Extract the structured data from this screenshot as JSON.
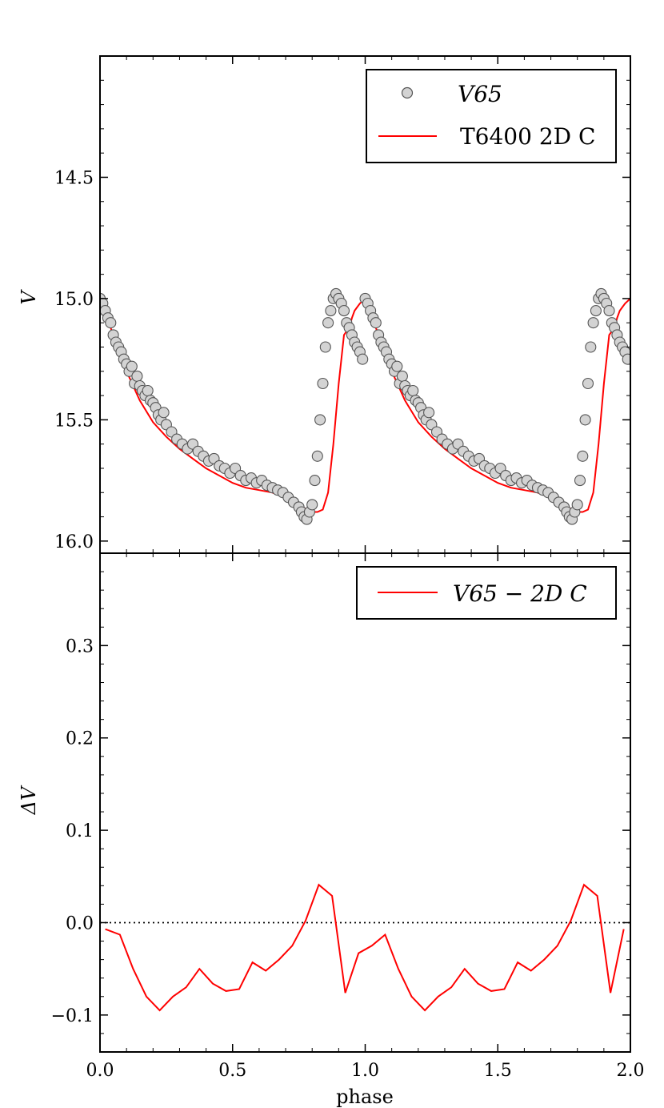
{
  "chart_data": [
    {
      "type": "scatter",
      "panel": "top",
      "xlabel": "",
      "ylabel": "V",
      "xlim": [
        0.0,
        2.0
      ],
      "ylim": [
        16.05,
        14.0
      ],
      "y_inverted": true,
      "yticks": [
        "14.5",
        "15.0",
        "15.5",
        "16.0"
      ],
      "ytick_values": [
        14.5,
        15.0,
        15.5,
        16.0
      ],
      "legend_position": "top-right",
      "legend": [
        {
          "label": "V65",
          "kind": "marker",
          "color": "#d3d3d3"
        },
        {
          "label": "T6400 2D C",
          "kind": "line",
          "color": "#ff0000"
        }
      ],
      "series": [
        {
          "name": "V65",
          "kind": "points",
          "note_symmetry": "phase 1.0-2.0 repeats phase 0.0-1.0",
          "x": [
            0.0,
            0.01,
            0.02,
            0.03,
            0.04,
            0.05,
            0.06,
            0.07,
            0.08,
            0.09,
            0.1,
            0.11,
            0.12,
            0.13,
            0.14,
            0.15,
            0.16,
            0.17,
            0.18,
            0.19,
            0.2,
            0.21,
            0.22,
            0.23,
            0.24,
            0.25,
            0.27,
            0.29,
            0.31,
            0.33,
            0.35,
            0.37,
            0.39,
            0.41,
            0.43,
            0.45,
            0.47,
            0.49,
            0.51,
            0.53,
            0.55,
            0.57,
            0.59,
            0.61,
            0.63,
            0.65,
            0.67,
            0.69,
            0.71,
            0.73,
            0.75,
            0.76,
            0.77,
            0.78,
            0.79,
            0.8,
            0.81,
            0.82,
            0.83,
            0.84,
            0.85,
            0.86,
            0.87,
            0.88,
            0.89,
            0.9,
            0.91,
            0.92,
            0.93,
            0.94,
            0.95,
            0.96,
            0.97,
            0.98,
            0.99
          ],
          "y": [
            15.0,
            15.02,
            15.05,
            15.08,
            15.1,
            15.15,
            15.18,
            15.2,
            15.22,
            15.25,
            15.27,
            15.3,
            15.28,
            15.35,
            15.32,
            15.36,
            15.38,
            15.4,
            15.38,
            15.42,
            15.43,
            15.45,
            15.48,
            15.5,
            15.47,
            15.52,
            15.55,
            15.58,
            15.6,
            15.62,
            15.6,
            15.63,
            15.65,
            15.67,
            15.66,
            15.69,
            15.7,
            15.72,
            15.7,
            15.73,
            15.75,
            15.74,
            15.76,
            15.75,
            15.77,
            15.78,
            15.79,
            15.8,
            15.82,
            15.84,
            15.86,
            15.88,
            15.9,
            15.91,
            15.88,
            15.85,
            15.75,
            15.65,
            15.5,
            15.35,
            15.2,
            15.1,
            15.05,
            15.0,
            14.98,
            15.0,
            15.02,
            15.05,
            15.1,
            15.12,
            15.15,
            15.18,
            15.2,
            15.22,
            15.25
          ]
        },
        {
          "name": "T6400 2D C",
          "kind": "line",
          "x": [
            0.0,
            0.05,
            0.1,
            0.15,
            0.2,
            0.25,
            0.3,
            0.35,
            0.4,
            0.45,
            0.5,
            0.55,
            0.6,
            0.65,
            0.7,
            0.72,
            0.75,
            0.78,
            0.8,
            0.82,
            0.84,
            0.86,
            0.88,
            0.9,
            0.92,
            0.94,
            0.95,
            0.96,
            0.98,
            1.0,
            1.05,
            1.1,
            1.15,
            1.2,
            1.25,
            1.3,
            1.35,
            1.4,
            1.45,
            1.5,
            1.55,
            1.6,
            1.65,
            1.7,
            1.72,
            1.75,
            1.78,
            1.8,
            1.82,
            1.84,
            1.86,
            1.88,
            1.9,
            1.92,
            1.94,
            1.95,
            1.96,
            1.98,
            2.0
          ],
          "y": [
            15.0,
            15.15,
            15.3,
            15.42,
            15.51,
            15.57,
            15.62,
            15.66,
            15.7,
            15.73,
            15.76,
            15.78,
            15.79,
            15.8,
            15.82,
            15.83,
            15.85,
            15.87,
            15.88,
            15.88,
            15.87,
            15.8,
            15.6,
            15.35,
            15.15,
            15.12,
            15.08,
            15.05,
            15.02,
            15.0,
            15.15,
            15.3,
            15.42,
            15.51,
            15.57,
            15.62,
            15.66,
            15.7,
            15.73,
            15.76,
            15.78,
            15.79,
            15.8,
            15.82,
            15.83,
            15.85,
            15.87,
            15.88,
            15.88,
            15.87,
            15.8,
            15.6,
            15.35,
            15.15,
            15.12,
            15.08,
            15.05,
            15.02,
            15.0
          ]
        }
      ]
    },
    {
      "type": "line",
      "panel": "bottom",
      "xlabel": "phase",
      "ylabel": "ΔV",
      "xlim": [
        0.0,
        2.0
      ],
      "ylim": [
        -0.14,
        0.4
      ],
      "xticks": [
        "0.0",
        "0.5",
        "1.0",
        "1.5",
        "2.0"
      ],
      "xtick_values": [
        0.0,
        0.5,
        1.0,
        1.5,
        2.0
      ],
      "yticks": [
        "−0.1",
        "0.0",
        "0.1",
        "0.2",
        "0.3"
      ],
      "ytick_values": [
        -0.1,
        0.0,
        0.1,
        0.2,
        0.3
      ],
      "reference_line": {
        "y": 0.0,
        "style": "dotted",
        "color": "#000000"
      },
      "legend_position": "top-right",
      "legend": [
        {
          "label": "V65 − 2D C",
          "kind": "line",
          "color": "#ff0000"
        }
      ],
      "series": [
        {
          "name": "V65 − 2D C",
          "color": "#ff0000",
          "x": [
            0.02,
            0.075,
            0.125,
            0.175,
            0.225,
            0.275,
            0.325,
            0.375,
            0.425,
            0.475,
            0.525,
            0.575,
            0.625,
            0.675,
            0.725,
            0.775,
            0.825,
            0.875,
            0.925,
            0.975,
            1.025,
            1.075,
            1.125,
            1.175,
            1.225,
            1.275,
            1.325,
            1.375,
            1.425,
            1.475,
            1.525,
            1.575,
            1.625,
            1.675,
            1.725,
            1.775,
            1.825,
            1.875,
            1.925,
            1.975
          ],
          "y": [
            -0.007,
            -0.013,
            -0.05,
            -0.08,
            -0.095,
            -0.08,
            -0.07,
            -0.05,
            -0.066,
            -0.074,
            -0.072,
            -0.043,
            -0.052,
            -0.04,
            -0.025,
            0.002,
            0.041,
            0.029,
            -0.076,
            -0.033,
            -0.025,
            -0.013,
            -0.05,
            -0.08,
            -0.095,
            -0.08,
            -0.07,
            -0.05,
            -0.066,
            -0.074,
            -0.072,
            -0.043,
            -0.052,
            -0.04,
            -0.025,
            0.002,
            0.041,
            0.029,
            -0.076,
            -0.007
          ]
        }
      ]
    }
  ]
}
